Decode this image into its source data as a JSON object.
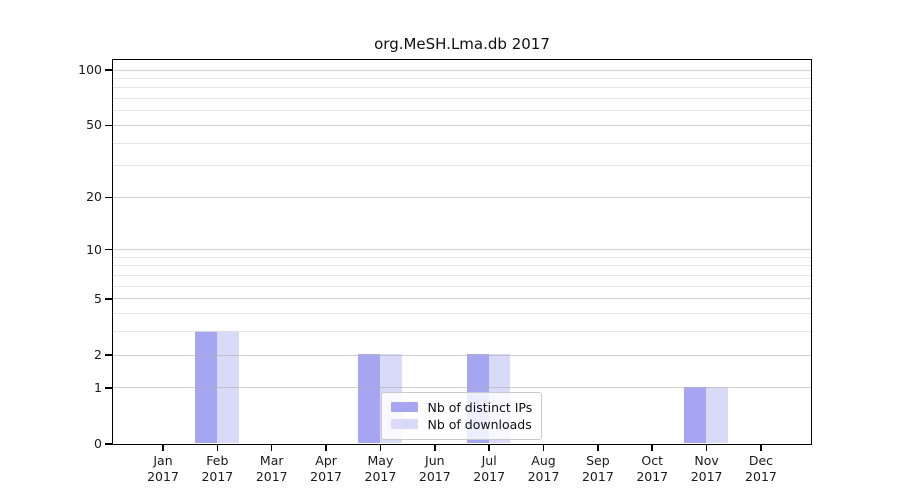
{
  "chart_data": {
    "type": "bar",
    "title": "org.MeSH.Lma.db 2017",
    "categories": [
      "Jan",
      "Feb",
      "Mar",
      "Apr",
      "May",
      "Jun",
      "Jul",
      "Aug",
      "Sep",
      "Oct",
      "Nov",
      "Dec"
    ],
    "category_year": "2017",
    "series": [
      {
        "name": "Nb of distinct IPs",
        "color": "#a5a5f2",
        "values": [
          0,
          3,
          0,
          0,
          2,
          0,
          2,
          0,
          0,
          0,
          1,
          0
        ]
      },
      {
        "name": "Nb of downloads",
        "color": "#d9d9f8",
        "values": [
          0,
          3,
          0,
          0,
          2,
          0,
          2,
          0,
          0,
          0,
          1,
          0
        ]
      }
    ],
    "yscale": "log1p",
    "ylim": [
      0,
      113
    ],
    "yticks": [
      0,
      1,
      2,
      5,
      10,
      20,
      50,
      100
    ],
    "yticks_minor": [
      3,
      4,
      6,
      7,
      8,
      9,
      30,
      40,
      60,
      70,
      80,
      90
    ],
    "grid": "horizontal",
    "legend": {
      "position": "lower-center-inside",
      "labels": [
        "Nb of distinct IPs",
        "Nb of downloads"
      ]
    }
  },
  "colors": {
    "bar_dark": "#a5a5f2",
    "bar_light": "#d9d9f8",
    "spine": "#000000",
    "major_grid": "#d2d2d2",
    "minor_grid": "#eaeaea",
    "text": "#1a1a1a",
    "legend_border": "#c9c9c9",
    "legend_bg": "rgba(255,255,255,0.8)"
  }
}
